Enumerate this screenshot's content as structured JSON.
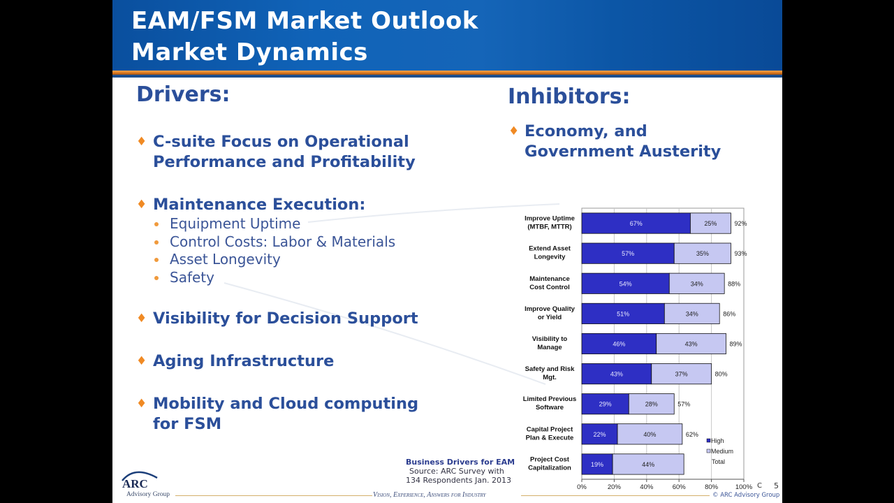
{
  "header": {
    "title_line1": "EAM/FSM Market Outlook",
    "title_line2": "Market Dynamics"
  },
  "drivers": {
    "heading": "Drivers:",
    "items": [
      {
        "lines": [
          "C-suite Focus on Operational",
          "Performance and Profitability"
        ]
      },
      {
        "lines": [
          "Maintenance Execution:"
        ],
        "subitems": [
          "Equipment Uptime",
          "Control Costs: Labor & Materials",
          "Asset Longevity",
          "Safety"
        ]
      },
      {
        "lines": [
          "Visibility for Decision Support"
        ]
      },
      {
        "lines": [
          "Aging Infrastructure"
        ]
      },
      {
        "lines": [
          "Mobility and Cloud computing",
          "for FSM"
        ]
      }
    ]
  },
  "inhibitors": {
    "heading": "Inhibitors:",
    "items": [
      {
        "lines": [
          "Economy, and",
          "Government Austerity"
        ]
      }
    ]
  },
  "chart_source": {
    "title": "Business Drivers for EAM",
    "line1": "Source: ARC Survey with",
    "line2": "134 Respondents Jan. 2013"
  },
  "footer": {
    "logo_text": "ARC",
    "logo_sub": "Advisory Group",
    "tagline": "Vision, Experience, Answers for Industry",
    "copyright": "© ARC Advisory Group",
    "page_marker": "C",
    "page_number": "5"
  },
  "colors": {
    "high": "#2e2fc4",
    "medium": "#c6c8f2",
    "heading": "#2b4f9a",
    "bullet": "#f08a24"
  },
  "chart_data": {
    "type": "bar",
    "orientation": "horizontal",
    "stacked": true,
    "categories": [
      [
        "Improve Uptime",
        "(MTBF, MTTR)"
      ],
      [
        "Extend Asset",
        "Longevity"
      ],
      [
        "Maintenance",
        "Cost Control"
      ],
      [
        "Improve Quality",
        "or Yield"
      ],
      [
        "Visibility to",
        "Manage"
      ],
      [
        "Safety and Risk",
        "Mgt."
      ],
      [
        "Limited Previous",
        "Software"
      ],
      [
        "Capital Project",
        "Plan & Execute"
      ],
      [
        "Project Cost",
        "Capitalization"
      ]
    ],
    "series": [
      {
        "name": "High",
        "values": [
          67,
          57,
          54,
          51,
          46,
          43,
          29,
          22,
          19
        ]
      },
      {
        "name": "Medium",
        "values": [
          25,
          35,
          34,
          34,
          43,
          37,
          28,
          40,
          44
        ]
      }
    ],
    "totals_label": "Total",
    "totals": [
      92,
      93,
      88,
      86,
      89,
      80,
      57,
      62,
      63
    ],
    "total_labels_shown": [
      92,
      93,
      88,
      86,
      89,
      80,
      57,
      62,
      null
    ],
    "xlim": [
      0,
      100
    ],
    "xticks": [
      "0%",
      "20%",
      "40%",
      "60%",
      "80%",
      "100%"
    ],
    "grid": true,
    "legend": {
      "position": "bottom-right",
      "entries": [
        "High",
        "Medium",
        "Total"
      ]
    },
    "title": "Business Drivers for EAM"
  }
}
